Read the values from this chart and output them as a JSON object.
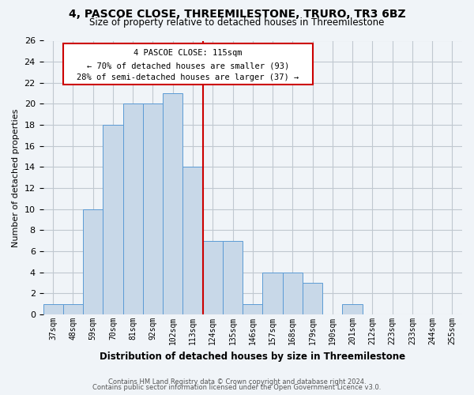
{
  "title": "4, PASCOE CLOSE, THREEMILESTONE, TRURO, TR3 6BZ",
  "subtitle": "Size of property relative to detached houses in Threemilestone",
  "xlabel": "Distribution of detached houses by size in Threemilestone",
  "ylabel": "Number of detached properties",
  "categories": [
    "37sqm",
    "48sqm",
    "59sqm",
    "70sqm",
    "81sqm",
    "92sqm",
    "102sqm",
    "113sqm",
    "124sqm",
    "135sqm",
    "146sqm",
    "157sqm",
    "168sqm",
    "179sqm",
    "190sqm",
    "201sqm",
    "212sqm",
    "223sqm",
    "233sqm",
    "244sqm",
    "255sqm"
  ],
  "values": [
    1,
    1,
    10,
    18,
    20,
    20,
    21,
    14,
    7,
    7,
    1,
    4,
    4,
    3,
    0,
    1,
    0,
    0,
    0,
    0,
    0
  ],
  "bar_color": "#c8d8e8",
  "bar_edge_color": "#5b9bd5",
  "vline_index": 7,
  "vline_color": "#cc0000",
  "annotation_title": "4 PASCOE CLOSE: 115sqm",
  "annotation_line1": "← 70% of detached houses are smaller (93)",
  "annotation_line2": "28% of semi-detached houses are larger (37) →",
  "annotation_box_color": "#cc0000",
  "ylim": [
    0,
    26
  ],
  "yticks": [
    0,
    2,
    4,
    6,
    8,
    10,
    12,
    14,
    16,
    18,
    20,
    22,
    24,
    26
  ],
  "grid_color": "#c0c8d0",
  "bg_color": "#f0f4f8",
  "footer1": "Contains HM Land Registry data © Crown copyright and database right 2024.",
  "footer2": "Contains public sector information licensed under the Open Government Licence v3.0."
}
